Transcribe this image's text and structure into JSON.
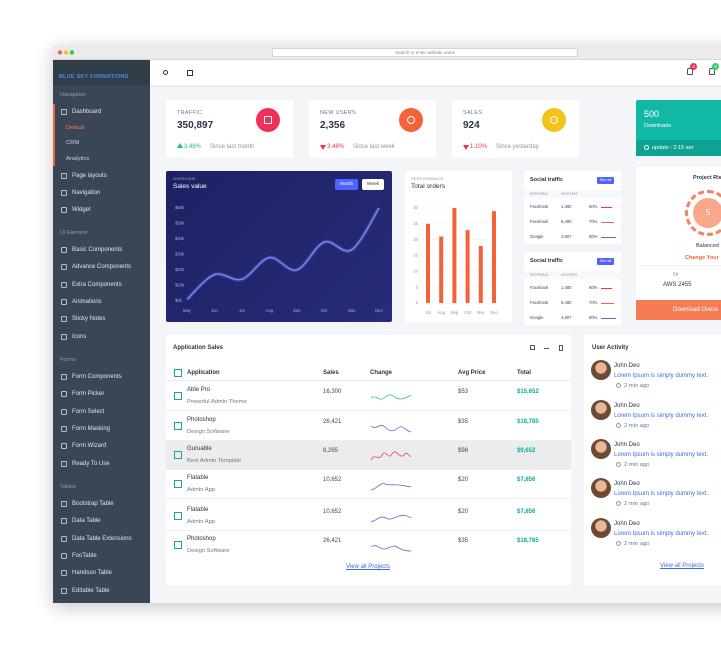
{
  "browser": {
    "address": "Search or enter website name"
  },
  "header": {
    "badges": [
      3,
      3
    ]
  },
  "sidebar": {
    "logo": "BLUE SKY FORMATIONS",
    "sections": [
      {
        "title": "Navigation",
        "items": [
          {
            "label": "Dashboard",
            "children": [
              "Default",
              "CRM",
              "Analytics"
            ]
          },
          {
            "label": "Page layouts"
          },
          {
            "label": "Navigation"
          },
          {
            "label": "Widget"
          }
        ]
      },
      {
        "title": "UI Element",
        "items": [
          {
            "label": "Basic Components"
          },
          {
            "label": "Advance Components"
          },
          {
            "label": "Extra Components"
          },
          {
            "label": "Animations"
          },
          {
            "label": "Sticky Notes"
          },
          {
            "label": "Icons"
          }
        ]
      },
      {
        "title": "Forms",
        "items": [
          {
            "label": "Form Components"
          },
          {
            "label": "Form Picker"
          },
          {
            "label": "Form Select"
          },
          {
            "label": "Form Masking"
          },
          {
            "label": "Form Wizard"
          },
          {
            "label": "Ready To Use"
          }
        ]
      },
      {
        "title": "Tables",
        "items": [
          {
            "label": "Bootstrap Table"
          },
          {
            "label": "Data Table"
          },
          {
            "label": "Data Table Extensions"
          },
          {
            "label": "FooTable"
          },
          {
            "label": "Handson Table"
          },
          {
            "label": "Editable Table"
          }
        ]
      }
    ]
  },
  "stats": [
    {
      "title": "TRAFFIC",
      "value": "350,897",
      "change": "3.48%",
      "trend": "up",
      "note": "Since last month",
      "color": "#ee3158"
    },
    {
      "title": "NEW USERS",
      "value": "2,356",
      "change": "3.48%",
      "trend": "down",
      "note": "Since last week",
      "color": "#f4623a"
    },
    {
      "title": "SALES",
      "value": "924",
      "change": "1.10%",
      "trend": "down",
      "note": "Since yesterday",
      "color": "#f2c31a"
    }
  ],
  "downloads": {
    "value": "500",
    "label": "Downloads",
    "update": "update : 2:15 am"
  },
  "sales_chart": {
    "type": "line",
    "overline": "OVERVIEW",
    "title": "Sales value",
    "buttons": [
      "Month",
      "Week"
    ],
    "categories": [
      "May",
      "Jun",
      "Jul",
      "Aug",
      "Sep",
      "Oct",
      "Nov",
      "Dec"
    ],
    "values": [
      1,
      17,
      14,
      28,
      20,
      38,
      33,
      60
    ],
    "ylim": [
      0,
      60
    ],
    "yticks": [
      {
        "value": 0,
        "label": "$0k"
      },
      {
        "value": 10,
        "label": "$10k"
      },
      {
        "value": 20,
        "label": "$20k"
      },
      {
        "value": 30,
        "label": "$30k"
      },
      {
        "value": 40,
        "label": "$40k"
      },
      {
        "value": 50,
        "label": "$50k"
      },
      {
        "value": 60,
        "label": "$60k"
      }
    ],
    "color": "#7d8cff"
  },
  "orders_chart": {
    "type": "bar",
    "overline": "PERFORMANCE",
    "title": "Total orders",
    "categories": [
      "Jul",
      "Aug",
      "Sep",
      "Oct",
      "Nov",
      "Dec"
    ],
    "values": [
      25,
      21,
      30,
      23,
      18,
      29
    ],
    "ylim": [
      0,
      30
    ],
    "yticks": [
      0,
      5,
      10,
      15,
      20,
      25,
      30
    ],
    "grid": true,
    "color": "#f4623a"
  },
  "social": [
    {
      "title": "Social traffic",
      "link": "See all",
      "columns": [
        "REFERRAL",
        "VISITORS"
      ],
      "rows": [
        [
          "Facebook",
          "1,480",
          "60%"
        ],
        [
          "Facebook",
          "5,480",
          "70%"
        ],
        [
          "Google",
          "4,807",
          "80%"
        ]
      ]
    },
    {
      "title": "Social traffic",
      "link": "See all",
      "columns": [
        "REFERRAL",
        "VISITORS"
      ],
      "rows": [
        [
          "Facebook",
          "1,480",
          "60%"
        ],
        [
          "Facebook",
          "5,480",
          "70%"
        ],
        [
          "Google",
          "4,807",
          "80%"
        ]
      ]
    }
  ],
  "risk": {
    "title": "Project Ris",
    "score": "5",
    "status": "Balanced",
    "link": "Change Your",
    "label": "Nr",
    "value": "AWS 2455",
    "button": "Download Overa"
  },
  "app_sales": {
    "title": "Application Sales",
    "columns": [
      "Application",
      "Sales",
      "Change",
      "Avg Price",
      "Total"
    ],
    "rows": [
      {
        "name": "Able Pro",
        "desc": "Powerful Admin Theme",
        "sales": "16,300",
        "price": "$53",
        "total": "$15,652",
        "spark_color": "#2ecc71"
      },
      {
        "name": "Photoshop",
        "desc": "Design Software",
        "sales": "26,421",
        "price": "$35",
        "total": "$18,785",
        "spark_color": "#4a6fd8"
      },
      {
        "name": "Guruable",
        "desc": "Best Admin Template",
        "sales": "8,265",
        "price": "$98",
        "total": "$9,652",
        "spark_color": "#e84a5f"
      },
      {
        "name": "Flatable",
        "desc": "Admin App",
        "sales": "10,652",
        "price": "$20",
        "total": "$7,856",
        "spark_color": "#4a6fd8"
      },
      {
        "name": "Flatable",
        "desc": "Admin App",
        "sales": "10,652",
        "price": "$20",
        "total": "$7,856",
        "spark_color": "#4a6fd8"
      },
      {
        "name": "Photoshop",
        "desc": "Design Software",
        "sales": "26,421",
        "price": "$35",
        "total": "$18,785",
        "spark_color": "#4a6fd8"
      }
    ],
    "link": "View all Projects"
  },
  "activity": {
    "title": "User Activity",
    "items": [
      {
        "name": "John Deo",
        "text": "Lorem Ipsum is simply dummy text.",
        "time": "2 min ago"
      },
      {
        "name": "John Deo",
        "text": "Lorem Ipsum is simply dummy text.",
        "time": "2 min ago"
      },
      {
        "name": "John Deo",
        "text": "Lorem Ipsum is simply dummy text.",
        "time": "2 min ago"
      },
      {
        "name": "John Deo",
        "text": "Lorem Ipsum is simply dummy text.",
        "time": "2 min ago"
      },
      {
        "name": "John Deo",
        "text": "Lorem Ipsum is simply dummy text.",
        "time": "2 min ago"
      }
    ],
    "link": "View all Projects"
  }
}
